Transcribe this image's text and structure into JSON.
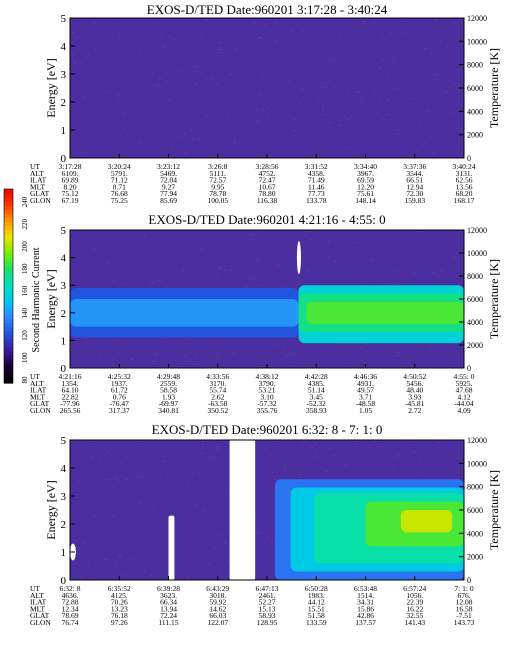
{
  "figure": {
    "colors": {
      "background": "#4b2fa0",
      "speckle": "#7a3a8a",
      "colorbar_stops": [
        "#000000",
        "#1a0040",
        "#3a1fa0",
        "#2255dd",
        "#2f88ff",
        "#00c8e8",
        "#00e0c0",
        "#20e060",
        "#80f000",
        "#f0e000",
        "#ff9000",
        "#ff3000",
        "#e00000"
      ]
    },
    "colorbar": {
      "label": "Second Harmonic Current",
      "ticks": [
        "240",
        "220",
        "200",
        "180",
        "160",
        "140",
        "120",
        "100",
        "80"
      ],
      "range": [
        80,
        240
      ]
    },
    "row_labels": [
      "UT",
      "ALT",
      "ILAT",
      "MLT",
      "GLAT",
      "GLON"
    ]
  },
  "chart_data": [
    {
      "type": "heatmap",
      "title": "EXOS-D/TED   Date:960201   3:17:28 - 3:40:24",
      "ylabel": "Energy [eV]",
      "y2label": "Temperature [K]",
      "ylim": [
        0,
        5
      ],
      "y2lim": [
        0,
        12000
      ],
      "yticks": [
        "0",
        "1",
        "2",
        "3",
        "4",
        "5"
      ],
      "y2ticks": [
        "0",
        "2000",
        "4000",
        "6000",
        "8000",
        "10000",
        "12000"
      ],
      "table": [
        [
          "3:17:28",
          "3:20:24",
          "3:23:12",
          "3:26:8",
          "3:28:56",
          "3:31:52",
          "3:34:40",
          "3:37:36",
          "3:40:24"
        ],
        [
          "6109.",
          "5791.",
          "5469.",
          "5111.",
          "4752.",
          "4358.",
          "3967.",
          "3544.",
          "3131."
        ],
        [
          "69.89",
          "71.12",
          "72.04",
          "72.57",
          "72.47",
          "71.49",
          "69.59",
          "66.51",
          "62.56"
        ],
        [
          "8.20",
          "8.71",
          "9.27",
          "9.95",
          "10.67",
          "11.46",
          "12.20",
          "12.94",
          "13.56"
        ],
        [
          "75.12",
          "76.68",
          "77.94",
          "78.78",
          "78.80",
          "77.73",
          "75.61",
          "72.30",
          "68.20"
        ],
        [
          "67.19",
          "75.25",
          "85.69",
          "100.05",
          "116.38",
          "133.78",
          "148.14",
          "159.83",
          "168.17"
        ]
      ],
      "features": [],
      "gaps": []
    },
    {
      "type": "heatmap",
      "title": "EXOS-D/TED   Date:960201   4:21:16 - 4:55: 0",
      "ylabel": "Energy [eV]",
      "y2label": "Temperature [K]",
      "ylim": [
        0,
        5
      ],
      "y2lim": [
        0,
        12000
      ],
      "yticks": [
        "0",
        "1",
        "2",
        "3",
        "4",
        "5"
      ],
      "y2ticks": [
        "0",
        "2000",
        "4000",
        "6000",
        "8000",
        "10000",
        "12000"
      ],
      "table": [
        [
          "4:21:16",
          "4:25:32",
          "4:29:48",
          "4:33:56",
          "4:38:12",
          "4:42:28",
          "4:46:36",
          "4:50:52",
          "4:55: 0"
        ],
        [
          "1354.",
          "1937.",
          "2559.",
          "3170.",
          "3790.",
          "4385.",
          "4931.",
          "5456.",
          "5925."
        ],
        [
          "64.10",
          "61.72",
          "58.58",
          "55.74",
          "53.21",
          "51.14",
          "49.57",
          "48.40",
          "47.68"
        ],
        [
          "22.82",
          "0.76",
          "1.93",
          "2.62",
          "3.10",
          "3.45",
          "3.71",
          "3.93",
          "4.12"
        ],
        [
          "-77.96",
          "-76.47",
          "-69.97",
          "-63.58",
          "-57.32",
          "-52.32",
          "-48.58",
          "-45.81",
          "-44.04"
        ],
        [
          "265.56",
          "317.37",
          "340.81",
          "350.52",
          "355.76",
          "358.93",
          "1.05",
          "2.72",
          "4.09"
        ]
      ],
      "features": [
        {
          "x0": 0.0,
          "x1": 0.58,
          "e0": 1.1,
          "e1": 2.9,
          "level": 0.25
        },
        {
          "x0": 0.0,
          "x1": 0.58,
          "e0": 1.5,
          "e1": 2.5,
          "level": 0.35
        },
        {
          "x0": 0.58,
          "x1": 1.0,
          "e0": 0.9,
          "e1": 3.0,
          "level": 0.45
        },
        {
          "x0": 0.58,
          "x1": 1.0,
          "e0": 1.3,
          "e1": 2.7,
          "level": 0.55
        },
        {
          "x0": 0.6,
          "x1": 1.0,
          "e0": 1.6,
          "e1": 2.4,
          "level": 0.62
        }
      ],
      "gaps": [
        {
          "x0": 0.577,
          "x1": 0.585,
          "e0": 3.4,
          "e1": 4.6,
          "shape": "oval"
        }
      ]
    },
    {
      "type": "heatmap",
      "title": "EXOS-D/TED   Date:960201   6:32: 8 - 7: 1: 0",
      "ylabel": "Energy [eV]",
      "y2label": "Temperature [K]",
      "ylim": [
        0,
        5
      ],
      "y2lim": [
        0,
        12000
      ],
      "yticks": [
        "0",
        "1",
        "2",
        "3",
        "4",
        "5"
      ],
      "y2ticks": [
        "0",
        "2000",
        "4000",
        "6000",
        "8000",
        "10000",
        "12000"
      ],
      "table": [
        [
          "6:32: 8",
          "6:35:52",
          "6:39:28",
          "6:43:29",
          "6:47:13",
          "6:50:28",
          "6:53:48",
          "6:57:24",
          "7: 1: 0"
        ],
        [
          "4636.",
          "4125.",
          "3623.",
          "3018.",
          "2461.",
          "1983.",
          "1514.",
          "1056.",
          "676."
        ],
        [
          "72.88",
          "70.26",
          "66.34",
          "59.92",
          "52.27",
          "44.12",
          "34.31",
          "22.39",
          "12.08"
        ],
        [
          "12.34",
          "13.23",
          "13.94",
          "14.62",
          "15.13",
          "15.51",
          "15.86",
          "16.22",
          "16.58"
        ],
        [
          "78.69",
          "76.18",
          "72.24",
          "66.03",
          "58.93",
          "51.58",
          "42.86",
          "32.55",
          "-7.51"
        ],
        [
          "76.74",
          "97.26",
          "111.15",
          "122.07",
          "128.95",
          "133.59",
          "137.57",
          "141.43",
          "143.73"
        ]
      ],
      "features": [
        {
          "x0": 0.52,
          "x1": 1.0,
          "e0": 0.0,
          "e1": 3.6,
          "level": 0.3
        },
        {
          "x0": 0.56,
          "x1": 1.0,
          "e0": 0.3,
          "e1": 3.3,
          "level": 0.42
        },
        {
          "x0": 0.62,
          "x1": 1.0,
          "e0": 0.6,
          "e1": 3.1,
          "level": 0.52
        },
        {
          "x0": 0.75,
          "x1": 1.0,
          "e0": 1.2,
          "e1": 2.8,
          "level": 0.62
        },
        {
          "x0": 0.84,
          "x1": 0.97,
          "e0": 1.7,
          "e1": 2.5,
          "level": 0.72
        }
      ],
      "gaps": [
        {
          "x0": 0.25,
          "x1": 0.265,
          "e0": 0.0,
          "e1": 2.3,
          "shape": "bar"
        },
        {
          "x0": 0.405,
          "x1": 0.47,
          "e0": 0.0,
          "e1": 5.0,
          "shape": "bar"
        },
        {
          "x0": 0.0,
          "x1": 0.015,
          "e0": 0.7,
          "e1": 1.3,
          "shape": "oval"
        }
      ]
    }
  ]
}
